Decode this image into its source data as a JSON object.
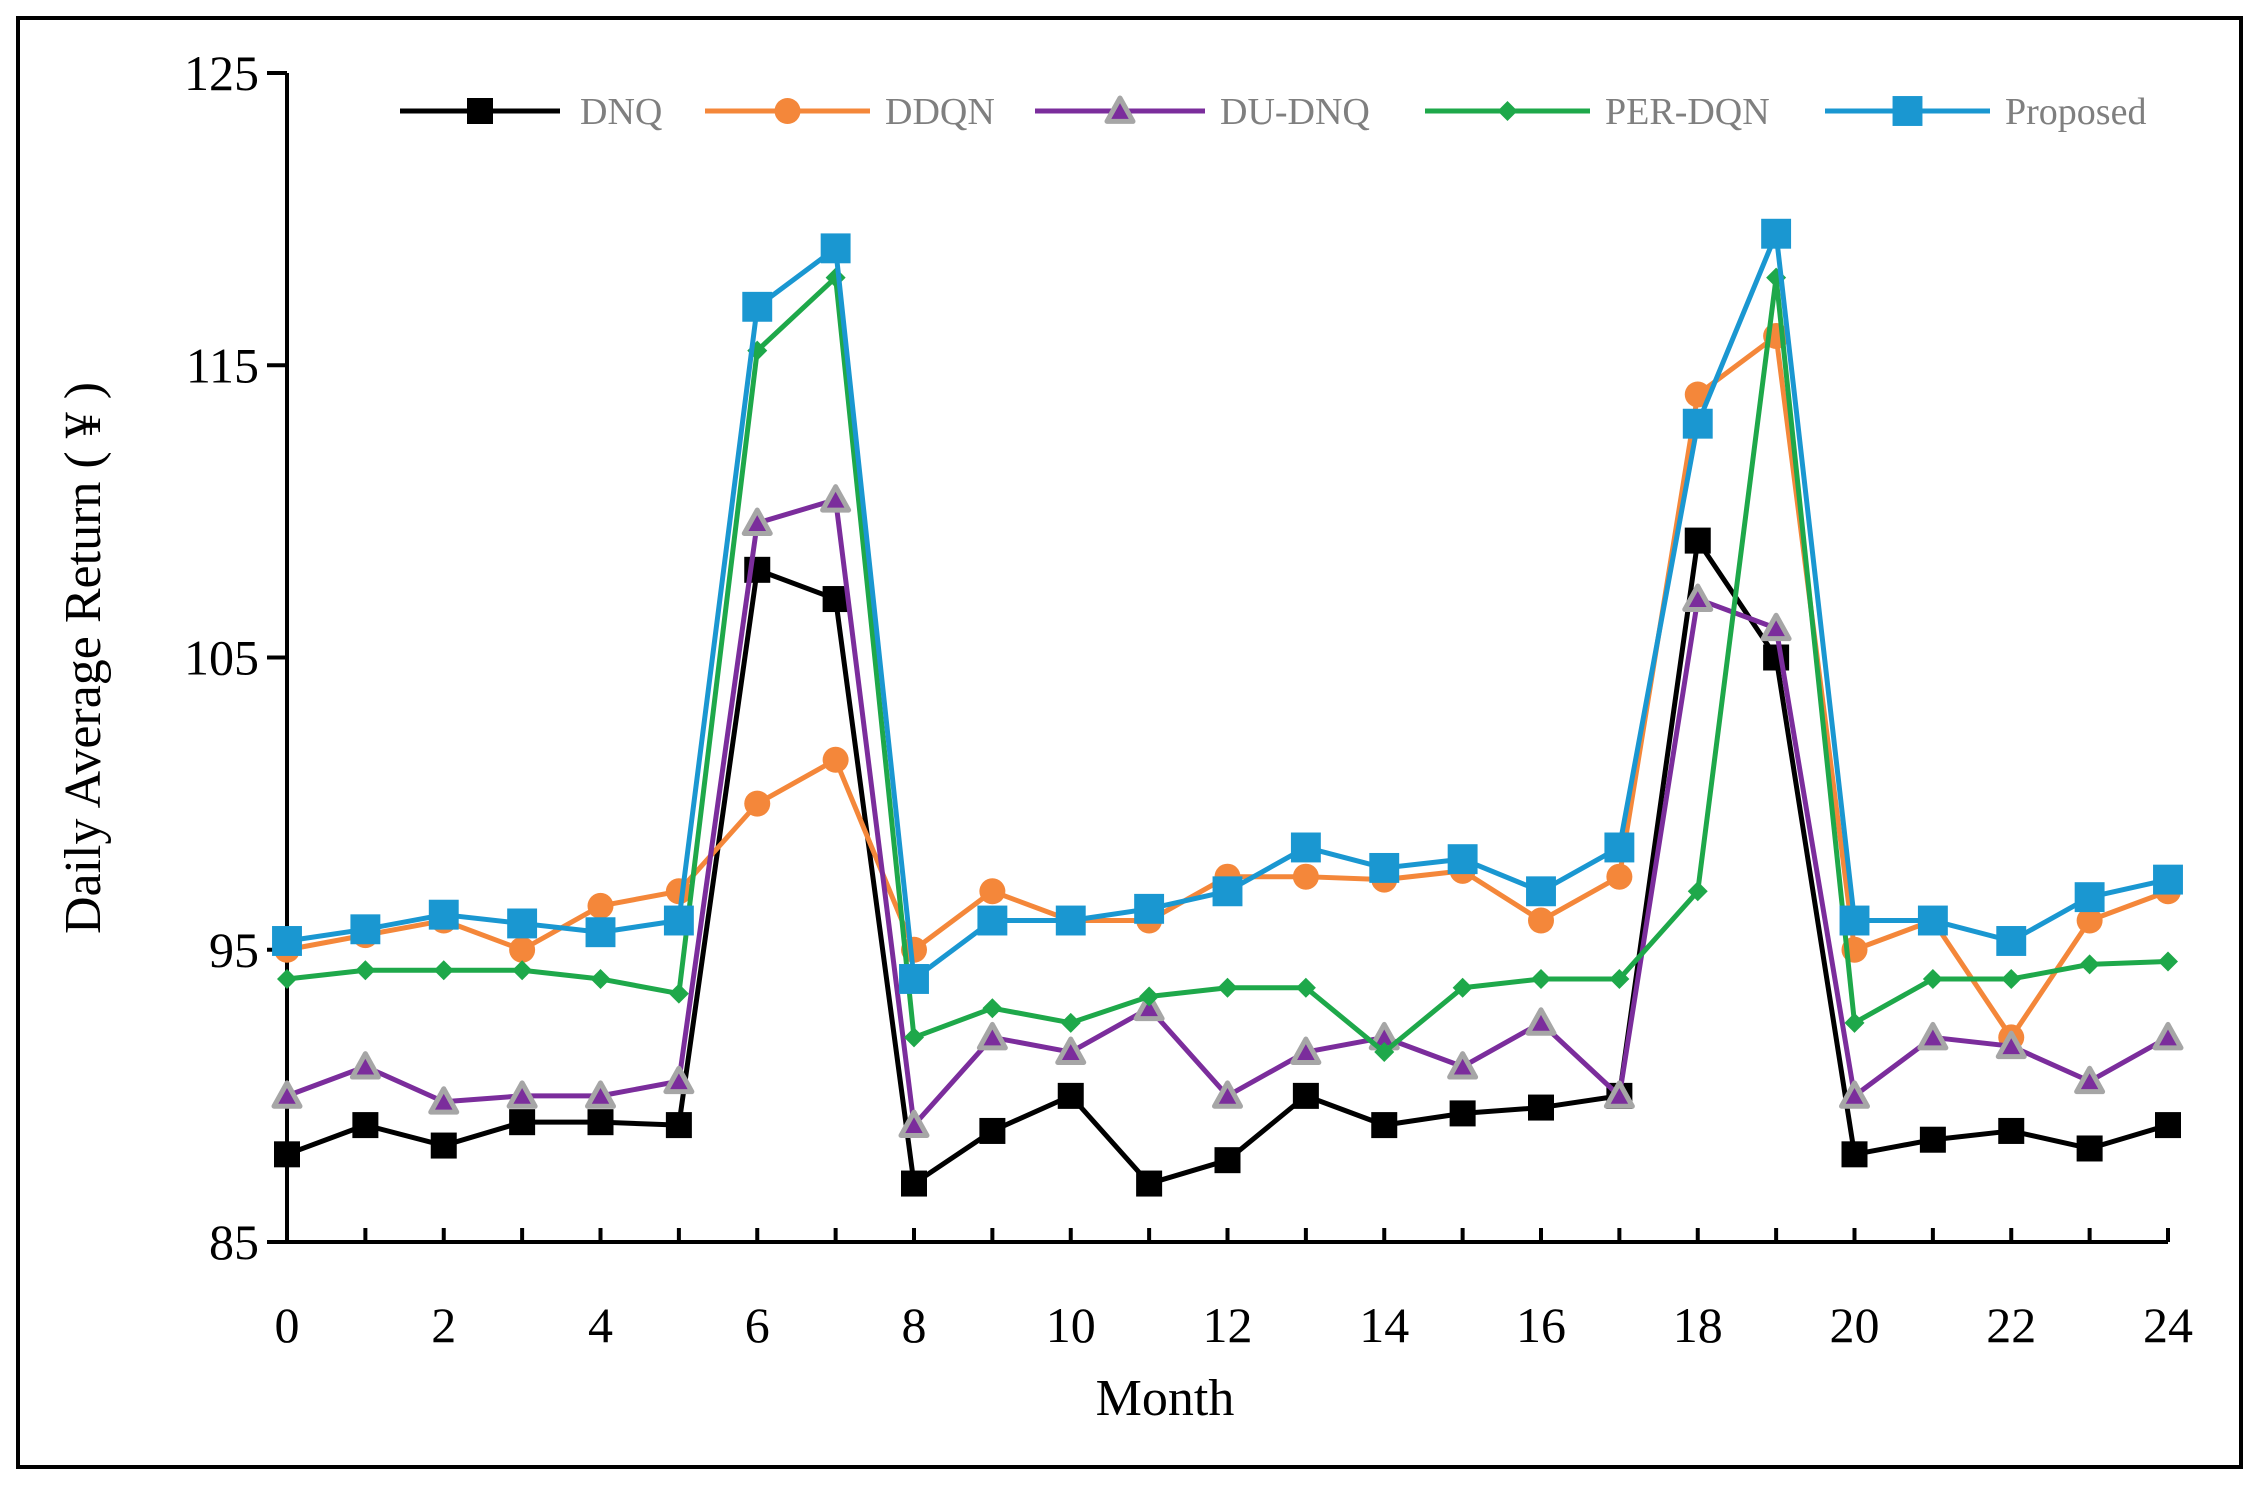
{
  "chart_data": {
    "type": "line",
    "xlabel": "Month",
    "ylabel": "Daily Average Return ( ¥ )",
    "ylim": [
      85,
      125
    ],
    "yticks": [
      85,
      95,
      105,
      115,
      125
    ],
    "xlim": [
      0,
      24
    ],
    "xticks": [
      0,
      2,
      4,
      6,
      8,
      10,
      12,
      14,
      16,
      18,
      20,
      22,
      24
    ],
    "legend_position": "top",
    "grid": false,
    "x": [
      0,
      1,
      2,
      3,
      4,
      5,
      6,
      7,
      8,
      9,
      10,
      11,
      12,
      13,
      14,
      15,
      16,
      17,
      18,
      19,
      20,
      21,
      22,
      23,
      24
    ],
    "series": [
      {
        "name": "DNQ",
        "color": "#000000",
        "marker": "square",
        "values": [
          88,
          89,
          88.3,
          89.1,
          89.1,
          89,
          108,
          107,
          87,
          88.8,
          90,
          87,
          87.8,
          90,
          89,
          89.4,
          89.6,
          90,
          109,
          105,
          88,
          88.5,
          88.8,
          88.2,
          89
        ]
      },
      {
        "name": "DDQN",
        "color": "#f4873a",
        "marker": "circle",
        "values": [
          95,
          95.5,
          96,
          95,
          96.5,
          97,
          100,
          101.5,
          95,
          97,
          96,
          96,
          97.5,
          97.5,
          97.4,
          97.7,
          96,
          97.5,
          114,
          116,
          95,
          96,
          92,
          96,
          97
        ]
      },
      {
        "name": "DU-DNQ",
        "color": "#7b2d9c",
        "marker": "triangle",
        "values": [
          90,
          91,
          89.8,
          90,
          90,
          90.5,
          109.6,
          110.4,
          89,
          92,
          91.5,
          93,
          90,
          91.5,
          92,
          91,
          92.5,
          90,
          107,
          106,
          90,
          92,
          91.7,
          90.5,
          92
        ]
      },
      {
        "name": "PER-DQN",
        "color": "#1ea84a",
        "marker": "diamond",
        "values": [
          94,
          94.3,
          94.3,
          94.3,
          94,
          93.5,
          115.5,
          118,
          92,
          93,
          92.5,
          93.4,
          93.7,
          93.7,
          91.5,
          93.7,
          94,
          94,
          97,
          118,
          92.5,
          94,
          94,
          94.5,
          94.6
        ]
      },
      {
        "name": "Proposed",
        "color": "#1a97d1",
        "marker": "square",
        "values": [
          95.3,
          95.7,
          96.2,
          95.9,
          95.6,
          96,
          117,
          119,
          94,
          96,
          96,
          96.4,
          97,
          98.5,
          97.8,
          98.1,
          97,
          98.5,
          113,
          119.5,
          96,
          96,
          95.3,
          96.8,
          97.4
        ]
      }
    ]
  }
}
